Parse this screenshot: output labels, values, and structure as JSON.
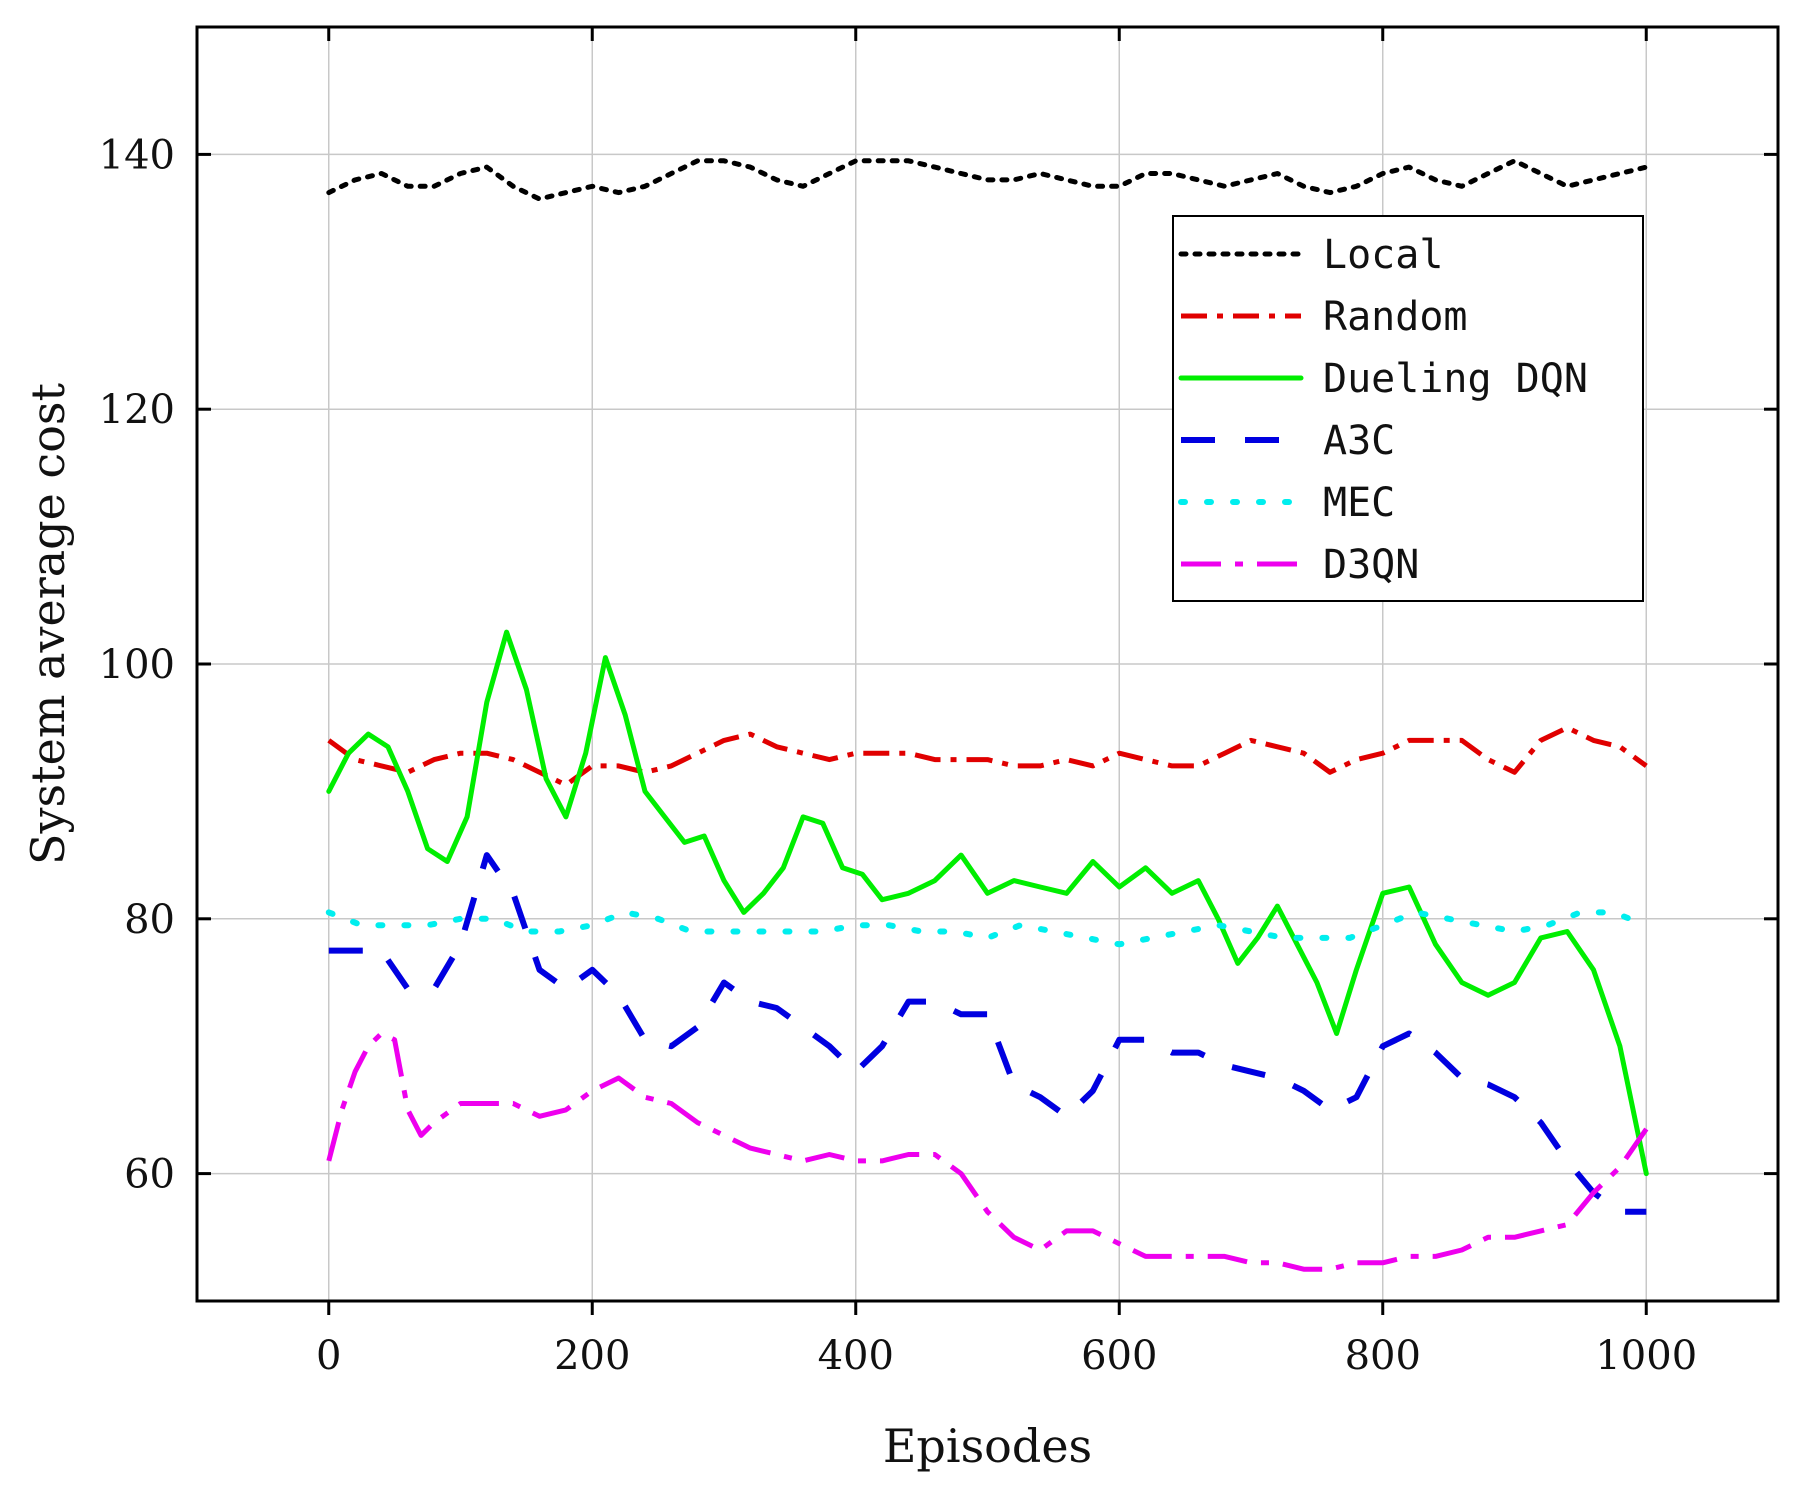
{
  "chart_data": {
    "type": "line",
    "title": "",
    "xlabel": "Episodes",
    "ylabel": "System average cost",
    "xlim": [
      -100,
      1100
    ],
    "ylim": [
      50,
      150
    ],
    "xticks": [
      0,
      200,
      400,
      600,
      800,
      1000
    ],
    "yticks": [
      60,
      80,
      100,
      120,
      140
    ],
    "xtick_labels": [
      "0",
      "200",
      "400",
      "600",
      "800",
      "1000"
    ],
    "ytick_labels": [
      "60",
      "80",
      "100",
      "120",
      "140"
    ],
    "grid": true,
    "legend_position": "top-right",
    "series": [
      {
        "name": "Local",
        "color": "#000000",
        "style": "dotted",
        "x": [
          0,
          20,
          40,
          60,
          80,
          100,
          120,
          140,
          160,
          180,
          200,
          220,
          240,
          260,
          280,
          300,
          320,
          340,
          360,
          380,
          400,
          420,
          440,
          460,
          480,
          500,
          520,
          540,
          560,
          580,
          600,
          620,
          640,
          660,
          680,
          700,
          720,
          740,
          760,
          780,
          800,
          820,
          840,
          860,
          880,
          900,
          920,
          940,
          960,
          980,
          1000
        ],
        "y": [
          137,
          138,
          138.5,
          137.5,
          137.5,
          138.5,
          139,
          137.5,
          136.5,
          137,
          137.5,
          137,
          137.5,
          138.5,
          139.5,
          139.5,
          139,
          138,
          137.5,
          138.5,
          139.5,
          139.5,
          139.5,
          139,
          138.5,
          138,
          138,
          138.5,
          138,
          137.5,
          137.5,
          138.5,
          138.5,
          138,
          137.5,
          138,
          138.5,
          137.5,
          137,
          137.5,
          138.5,
          139,
          138,
          137.5,
          138.5,
          139.5,
          138.5,
          137.5,
          138,
          138.5,
          139
        ]
      },
      {
        "name": "Random",
        "color": "#e00000",
        "style": "dashdot",
        "x": [
          0,
          20,
          40,
          60,
          80,
          100,
          120,
          140,
          160,
          180,
          200,
          220,
          240,
          260,
          280,
          300,
          320,
          340,
          360,
          380,
          400,
          420,
          440,
          460,
          480,
          500,
          520,
          540,
          560,
          580,
          600,
          620,
          640,
          660,
          680,
          700,
          720,
          740,
          760,
          780,
          800,
          820,
          840,
          860,
          880,
          900,
          920,
          940,
          960,
          980,
          1000
        ],
        "y": [
          94,
          92.5,
          92,
          91.5,
          92.5,
          93,
          93,
          92.5,
          91.5,
          90.5,
          92,
          92,
          91.5,
          92,
          93,
          94,
          94.5,
          93.5,
          93,
          92.5,
          93,
          93,
          93,
          92.5,
          92.5,
          92.5,
          92,
          92,
          92.5,
          92,
          93,
          92.5,
          92,
          92,
          93,
          94,
          93.5,
          93,
          91.5,
          92.5,
          93,
          94,
          94,
          94,
          92.5,
          91.5,
          94,
          95,
          94,
          93.5,
          92
        ]
      },
      {
        "name": "Dueling DQN",
        "color": "#00ee00",
        "style": "solid",
        "x": [
          0,
          15,
          30,
          45,
          60,
          75,
          90,
          105,
          120,
          135,
          150,
          165,
          180,
          195,
          210,
          225,
          240,
          255,
          270,
          285,
          300,
          315,
          330,
          345,
          360,
          375,
          390,
          405,
          420,
          440,
          460,
          480,
          500,
          520,
          540,
          560,
          580,
          600,
          620,
          640,
          660,
          675,
          690,
          705,
          720,
          735,
          750,
          765,
          780,
          800,
          820,
          840,
          860,
          880,
          900,
          920,
          940,
          960,
          980,
          1000
        ],
        "y": [
          90,
          93,
          94.5,
          93.5,
          90,
          85.5,
          84.5,
          88,
          97,
          102.5,
          98,
          91,
          88,
          93,
          100.5,
          96,
          90,
          88,
          86,
          86.5,
          83,
          80.5,
          82,
          84,
          88,
          87.5,
          84,
          83.5,
          81.5,
          82,
          83,
          85,
          82,
          83,
          82.5,
          82,
          84.5,
          82.5,
          84,
          82,
          83,
          80,
          76.5,
          78.5,
          81,
          78,
          75,
          71,
          76,
          82,
          82.5,
          78,
          75,
          74,
          75,
          78.5,
          79,
          76,
          70,
          60
        ]
      },
      {
        "name": "A3C",
        "color": "#0000e0",
        "style": "dashed",
        "x": [
          0,
          20,
          40,
          60,
          80,
          100,
          120,
          140,
          160,
          180,
          200,
          220,
          240,
          260,
          280,
          300,
          320,
          340,
          360,
          380,
          400,
          420,
          440,
          460,
          480,
          500,
          520,
          540,
          560,
          580,
          600,
          620,
          640,
          660,
          680,
          700,
          720,
          740,
          760,
          780,
          800,
          820,
          840,
          860,
          880,
          900,
          920,
          940,
          960,
          980,
          1000
        ],
        "y": [
          77.5,
          77.5,
          77.5,
          74.5,
          74.5,
          78,
          85,
          82,
          76,
          74.5,
          76,
          74,
          70.5,
          70,
          71.5,
          75,
          73.5,
          73,
          71.5,
          70,
          68,
          70,
          73.5,
          73.5,
          72.5,
          72.5,
          67,
          66,
          64.5,
          66.5,
          70.5,
          70.5,
          69.5,
          69.5,
          68.5,
          68,
          67.5,
          66.5,
          65,
          66,
          70,
          71,
          69.5,
          67.5,
          67,
          66,
          64,
          61,
          58.5,
          57,
          57
        ]
      },
      {
        "name": "MEC",
        "color": "#00eeee",
        "style": "dotted-sparse",
        "x": [
          0,
          25,
          50,
          75,
          100,
          125,
          150,
          175,
          200,
          225,
          250,
          275,
          300,
          325,
          350,
          375,
          400,
          425,
          450,
          475,
          500,
          525,
          550,
          575,
          600,
          625,
          650,
          675,
          700,
          725,
          750,
          775,
          800,
          825,
          850,
          875,
          900,
          925,
          950,
          975,
          1000
        ],
        "y": [
          80.5,
          79.5,
          79.5,
          79.5,
          80,
          80,
          79,
          79,
          79.5,
          80.5,
          80,
          79,
          79,
          79,
          79,
          79,
          79.5,
          79.5,
          79,
          79,
          78.5,
          79.5,
          79,
          78.5,
          78,
          78.5,
          79,
          79.5,
          79,
          78.5,
          78.5,
          78.5,
          79.5,
          80.5,
          80,
          79.5,
          79,
          79.5,
          80.5,
          80.5,
          79.5
        ]
      },
      {
        "name": "D3QN",
        "color": "#ee00ee",
        "style": "long-dashdot",
        "x": [
          0,
          10,
          20,
          30,
          40,
          50,
          60,
          70,
          80,
          100,
          120,
          140,
          160,
          180,
          200,
          220,
          240,
          260,
          280,
          300,
          320,
          340,
          360,
          380,
          400,
          420,
          440,
          460,
          480,
          500,
          520,
          540,
          560,
          580,
          600,
          620,
          640,
          660,
          680,
          700,
          720,
          740,
          760,
          780,
          800,
          820,
          840,
          860,
          880,
          900,
          920,
          940,
          960,
          980,
          1000
        ],
        "y": [
          61,
          65,
          68,
          70,
          71,
          70.5,
          65,
          63,
          64,
          65.5,
          65.5,
          65.5,
          64.5,
          65,
          66.5,
          67.5,
          66,
          65.5,
          64,
          63,
          62,
          61.5,
          61,
          61.5,
          61,
          61,
          61.5,
          61.5,
          60,
          57,
          55,
          54,
          55.5,
          55.5,
          54.5,
          53.5,
          53.5,
          53.5,
          53.5,
          53,
          53,
          52.5,
          52.5,
          53,
          53,
          53.5,
          53.5,
          54,
          55,
          55,
          55.5,
          56,
          58.5,
          60.5,
          63.5
        ]
      }
    ]
  }
}
